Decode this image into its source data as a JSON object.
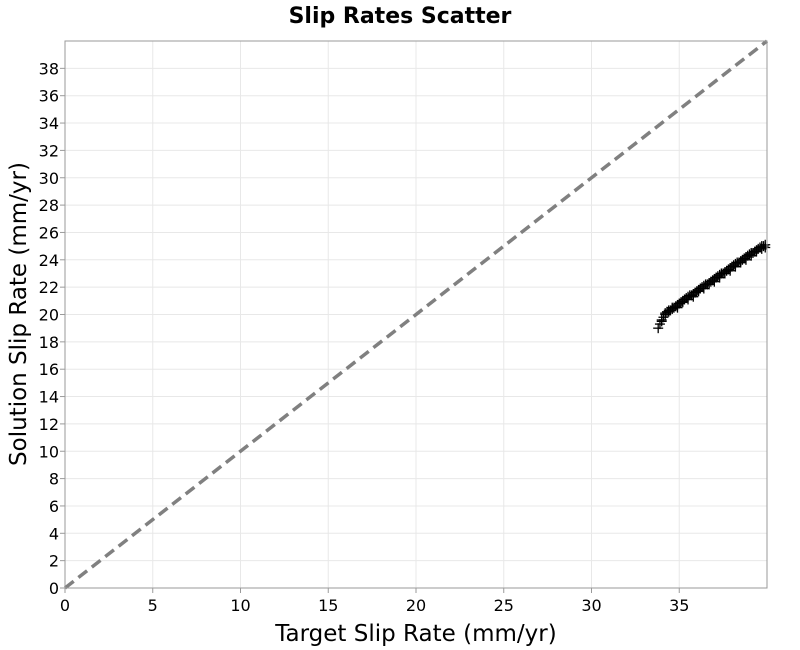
{
  "chart_data": {
    "type": "scatter",
    "title": "Slip Rates Scatter",
    "xlabel": "Target Slip Rate (mm/yr)",
    "ylabel": "Solution Slip Rate (mm/yr)",
    "xlim": [
      0,
      40
    ],
    "ylim": [
      0,
      40
    ],
    "xticks": [
      0,
      5,
      10,
      15,
      20,
      25,
      30,
      35
    ],
    "yticks": [
      0,
      2,
      4,
      6,
      8,
      10,
      12,
      14,
      16,
      18,
      20,
      22,
      24,
      26,
      28,
      30,
      32,
      34,
      36,
      38
    ],
    "grid": true,
    "marker": "plus",
    "marker_color": "#000000",
    "reference_line": {
      "style": "dashed",
      "color": "#808080",
      "from": [
        0,
        0
      ],
      "to": [
        40,
        40
      ]
    },
    "points": {
      "x": [
        33.8,
        33.9,
        34.0,
        34.1,
        34.2,
        34.3,
        34.4,
        34.5,
        34.6,
        34.7,
        34.8,
        34.9,
        35.0,
        35.1,
        35.2,
        35.3,
        35.4,
        35.5,
        35.6,
        35.7,
        35.8,
        35.9,
        36.0,
        36.1,
        36.2,
        36.3,
        36.4,
        36.5,
        36.6,
        36.7,
        36.8,
        36.9,
        37.0,
        37.1,
        37.2,
        37.3,
        37.4,
        37.5,
        37.6,
        37.7,
        37.8,
        37.9,
        38.0,
        38.1,
        38.2,
        38.3,
        38.4,
        38.5,
        38.6,
        38.7,
        38.8,
        38.9,
        39.0,
        39.1,
        39.2,
        39.3,
        39.4,
        39.5,
        39.6,
        39.7,
        39.8,
        39.9,
        34.0,
        34.2,
        34.4,
        34.6,
        34.9,
        35.2,
        35.5,
        35.8,
        36.1,
        36.4,
        36.7,
        37.0,
        37.3,
        37.6,
        37.9,
        38.2,
        38.5,
        38.8,
        39.1,
        39.4,
        39.7,
        39.9
      ],
      "y": [
        19.0,
        19.3,
        19.5,
        19.8,
        20.0,
        20.2,
        20.3,
        20.3,
        20.4,
        20.5,
        20.6,
        20.7,
        20.8,
        20.9,
        21.0,
        21.1,
        21.2,
        21.3,
        21.4,
        21.4,
        21.5,
        21.6,
        21.7,
        21.8,
        21.9,
        22.0,
        22.1,
        22.2,
        22.2,
        22.3,
        22.4,
        22.5,
        22.6,
        22.7,
        22.8,
        22.9,
        23.0,
        23.0,
        23.1,
        23.2,
        23.3,
        23.4,
        23.5,
        23.6,
        23.7,
        23.8,
        23.8,
        23.9,
        24.0,
        24.1,
        24.2,
        24.3,
        24.4,
        24.5,
        24.5,
        24.6,
        24.7,
        24.8,
        24.9,
        25.0,
        25.0,
        25.1,
        19.6,
        20.1,
        20.2,
        20.5,
        20.5,
        20.9,
        21.1,
        21.3,
        21.7,
        21.9,
        22.2,
        22.4,
        22.7,
        23.0,
        23.2,
        23.5,
        23.8,
        24.0,
        24.3,
        24.6,
        24.8,
        24.9
      ]
    }
  }
}
